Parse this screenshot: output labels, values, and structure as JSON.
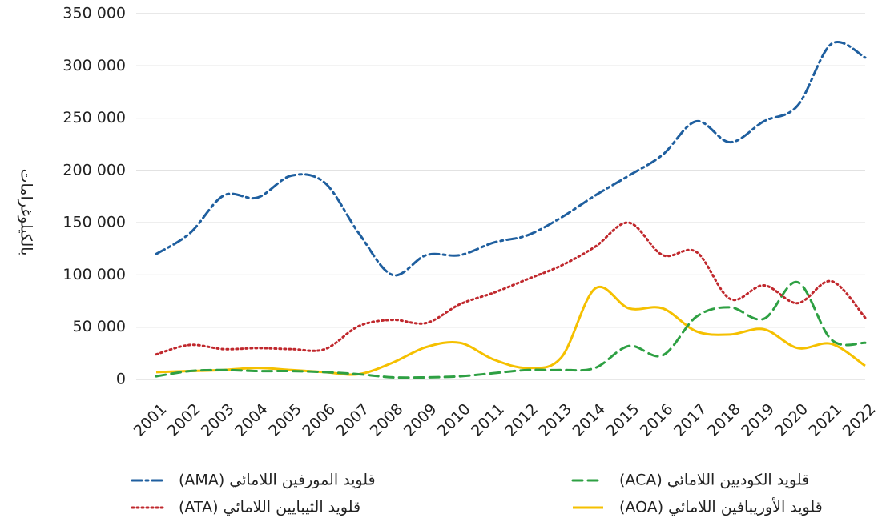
{
  "chart_data": {
    "type": "line",
    "y_label": "بالكيلوغرامات",
    "categories": [
      "2001",
      "2002",
      "2003",
      "2004",
      "2005",
      "2006",
      "2007",
      "2008",
      "2009",
      "2010",
      "2011",
      "2012",
      "2013",
      "2014",
      "2015",
      "2016",
      "2017",
      "2018",
      "2019",
      "2020",
      "2021",
      "2022"
    ],
    "series": [
      {
        "name": "قلويد المورفين اللامائي (AMA)",
        "color": "#1f5f9f",
        "dash": "12 5 3 5",
        "values": [
          120000,
          140000,
          176000,
          174000,
          195000,
          188000,
          140000,
          100000,
          119000,
          119000,
          131000,
          138000,
          155000,
          176000,
          195000,
          215000,
          247000,
          227000,
          247000,
          262000,
          321000,
          308000
        ]
      },
      {
        "name": "قلويد الثيبايين اللامائي (ATA)",
        "color": "#c0282d",
        "dash": "2 4",
        "values": [
          24000,
          33000,
          29000,
          30000,
          29000,
          29000,
          51000,
          57000,
          54000,
          72000,
          83000,
          96000,
          109000,
          127000,
          150000,
          119000,
          122000,
          77000,
          90000,
          73000,
          94000,
          59000
        ]
      },
      {
        "name": "قلويد الكوديين اللامائي (ACA)",
        "color": "#2ea043",
        "dash": "12 7",
        "values": [
          3000,
          8000,
          9000,
          8000,
          8000,
          7000,
          5000,
          2000,
          2000,
          3000,
          6000,
          9000,
          9000,
          11000,
          32000,
          23000,
          60000,
          69000,
          58000,
          93000,
          38000,
          35000
        ]
      },
      {
        "name": "قلويد الأوريبافين اللامائي (AOA)",
        "color": "#f5c000",
        "dash": "none",
        "values": [
          7000,
          8000,
          9000,
          11000,
          9000,
          7000,
          5000,
          16000,
          31000,
          35000,
          19000,
          11000,
          21000,
          87000,
          68000,
          68000,
          46000,
          43000,
          48000,
          30000,
          34000,
          13000
        ]
      }
    ],
    "ylim": [
      0,
      350000
    ],
    "yticks": [
      0,
      {
        "value": 50000,
        "label": "50 000"
      },
      {
        "value": 100000,
        "label": "100 000"
      },
      {
        "value": 150000,
        "label": "150 000"
      },
      {
        "value": 200000,
        "label": "200 000"
      },
      {
        "value": 250000,
        "label": "250 000"
      },
      {
        "value": 300000,
        "label": "300 000"
      },
      {
        "value": 350000,
        "label": "350 000"
      }
    ],
    "grid": true
  }
}
